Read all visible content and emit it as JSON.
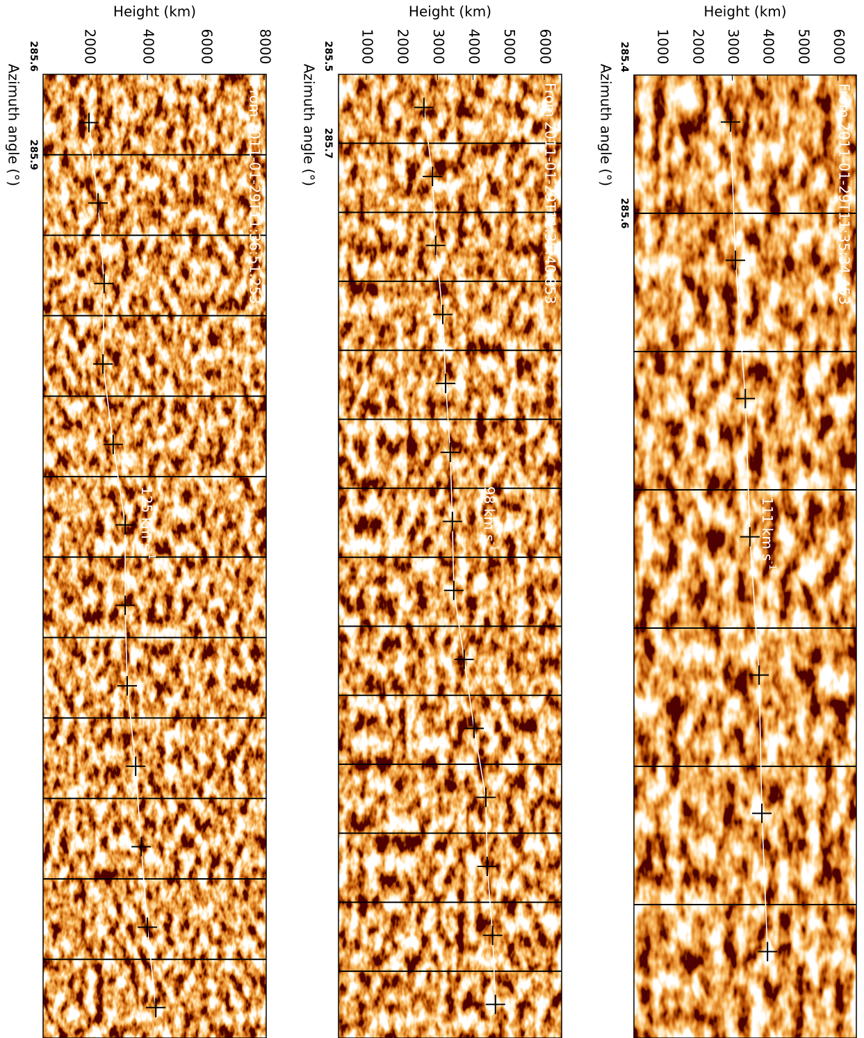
{
  "chart_data": [
    {
      "type": "scatter",
      "title": "From 2011-01-29T11:35:34.453",
      "annotation": "111 km s",
      "annotation_sup": "-1",
      "xlabel": "Height (km)",
      "ylabel": "Azimuth angle (°)",
      "xlim": [
        210,
        6520
      ],
      "xticks": [
        1000,
        2000,
        3000,
        4000,
        5000,
        6000
      ],
      "ylim": [
        285.4,
        285.6
      ],
      "yticks": [
        285.4,
        285.6
      ],
      "values": [
        2950,
        3090,
        3370,
        3500,
        3760,
        3840,
        4000
      ],
      "color": "#000000",
      "line_color": "#ffffff"
    },
    {
      "type": "scatter",
      "title": "From 2011-01-29T11:35:40.853",
      "annotation": "98 km s",
      "annotation_sup": "-1",
      "xlabel": "Height (km)",
      "ylabel": "Azimuth angle (°)",
      "xlim": [
        220,
        6490
      ],
      "xticks": [
        1000,
        2000,
        3000,
        4000,
        5000,
        6000
      ],
      "ylim": [
        285.5,
        285.7
      ],
      "yticks": [
        285.5,
        285.7
      ],
      "values": [
        2620,
        2860,
        2950,
        3150,
        3230,
        3360,
        3420,
        3460,
        3750,
        4030,
        4360,
        4400,
        4550,
        4630
      ],
      "color": "#000000",
      "line_color": "#ffffff"
    },
    {
      "type": "scatter",
      "title": "From 2011-01-29T11:36:51.253",
      "annotation": "125 km s",
      "annotation_sup": "-1",
      "xlabel": "Height (km)",
      "ylabel": "Azimuth angle (°)",
      "xlim": [
        430,
        8070
      ],
      "xticks": [
        2000,
        4000,
        6000,
        8000
      ],
      "ylim": [
        285.6,
        285.9
      ],
      "yticks": [
        285.6,
        285.9
      ],
      "values": [
        2000,
        2310,
        2520,
        2480,
        2830,
        3240,
        3240,
        3310,
        3600,
        3790,
        4000,
        4290
      ],
      "color": "#000000",
      "line_color": "#ffffff"
    }
  ]
}
